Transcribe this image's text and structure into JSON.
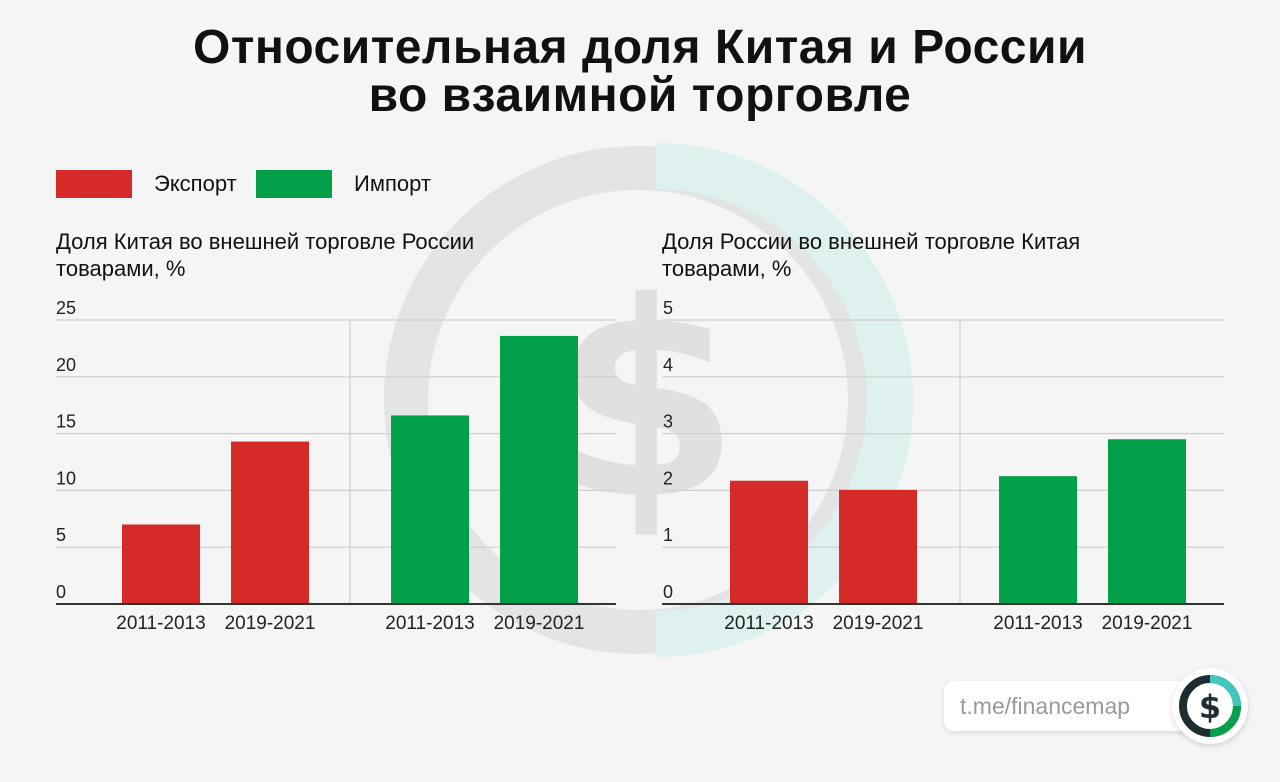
{
  "title_line1": "Относительная доля Китая и России",
  "title_line2": "во взаимной торговле",
  "legend": [
    {
      "label": "Экспорт",
      "color": "#d42a2a"
    },
    {
      "label": "Импорт",
      "color": "#01a049"
    }
  ],
  "colors": {
    "export": "#d42a2a",
    "import": "#01a049",
    "grid": "#cfcfcf",
    "axis": "#333333"
  },
  "footer": {
    "link": "t.me/financemap",
    "logo_icon": "dollar-coin-icon"
  },
  "chart_data": [
    {
      "type": "bar",
      "title": "Доля Китая во внешней торговле России товарами, %",
      "ylim": [
        0,
        25
      ],
      "yticks": [
        0,
        5,
        10,
        15,
        20,
        25
      ],
      "groups": [
        {
          "name": "Экспорт",
          "categories": [
            "2011-2013",
            "2019-2021"
          ],
          "values": [
            7.0,
            14.3
          ]
        },
        {
          "name": "Импорт",
          "categories": [
            "2011-2013",
            "2019-2021"
          ],
          "values": [
            16.6,
            23.6
          ]
        }
      ]
    },
    {
      "type": "bar",
      "title": "Доля России во внешней торговле Китая товарами, %",
      "ylim": [
        0,
        5
      ],
      "yticks": [
        0,
        1,
        2,
        3,
        4,
        5
      ],
      "groups": [
        {
          "name": "Экспорт",
          "categories": [
            "2011-2013",
            "2019-2021"
          ],
          "values": [
            2.17,
            2.01
          ]
        },
        {
          "name": "Импорт",
          "categories": [
            "2011-2013",
            "2019-2021"
          ],
          "values": [
            2.25,
            2.9
          ]
        }
      ]
    }
  ]
}
